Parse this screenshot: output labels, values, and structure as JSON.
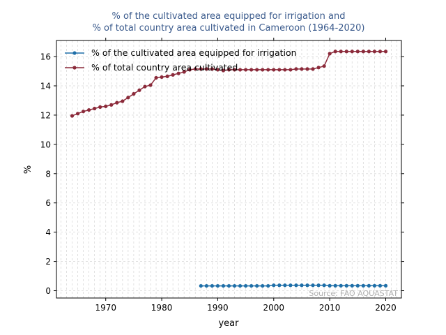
{
  "chart_data": {
    "type": "line",
    "title_line1": "% of the cultivated area equipped for irrigation and",
    "title_line2": "% of total country area cultivated in Cameroon (1964-2020)",
    "xlabel": "year",
    "ylabel": "%",
    "xlim": [
      1961.2,
      2022.8
    ],
    "ylim": [
      -0.5,
      17.1
    ],
    "xticks": [
      1970,
      1980,
      1990,
      2000,
      2010,
      2020
    ],
    "yticks": [
      0,
      2,
      4,
      6,
      8,
      10,
      12,
      14,
      16
    ],
    "grid": true,
    "legend_position": "top-left",
    "source": "Source: FAO AQUASTAT",
    "series": [
      {
        "name": "% of the cultivated area equipped for irrigation",
        "color": "#1f6fa8",
        "x": [
          1987,
          1988,
          1989,
          1990,
          1991,
          1992,
          1993,
          1994,
          1995,
          1996,
          1997,
          1998,
          1999,
          2000,
          2001,
          2002,
          2003,
          2004,
          2005,
          2006,
          2007,
          2008,
          2009,
          2010,
          2011,
          2012,
          2013,
          2014,
          2015,
          2016,
          2017,
          2018,
          2019,
          2020
        ],
        "y": [
          0.33,
          0.33,
          0.33,
          0.33,
          0.33,
          0.33,
          0.33,
          0.33,
          0.33,
          0.33,
          0.33,
          0.33,
          0.33,
          0.37,
          0.37,
          0.37,
          0.37,
          0.37,
          0.37,
          0.37,
          0.37,
          0.37,
          0.37,
          0.34,
          0.34,
          0.34,
          0.34,
          0.34,
          0.34,
          0.34,
          0.34,
          0.34,
          0.34,
          0.34
        ]
      },
      {
        "name": "% of total country area cultivated",
        "color": "#8b2a3a",
        "x": [
          1964,
          1965,
          1966,
          1967,
          1968,
          1969,
          1970,
          1971,
          1972,
          1973,
          1974,
          1975,
          1976,
          1977,
          1978,
          1979,
          1980,
          1981,
          1982,
          1983,
          1984,
          1985,
          1986,
          1987,
          1988,
          1989,
          1990,
          1991,
          1992,
          1993,
          1994,
          1995,
          1996,
          1997,
          1998,
          1999,
          2000,
          2001,
          2002,
          2003,
          2004,
          2005,
          2006,
          2007,
          2008,
          2009,
          2010,
          2011,
          2012,
          2013,
          2014,
          2015,
          2016,
          2017,
          2018,
          2019,
          2020
        ],
        "y": [
          11.95,
          12.1,
          12.25,
          12.35,
          12.45,
          12.55,
          12.6,
          12.7,
          12.85,
          12.95,
          13.2,
          13.45,
          13.7,
          13.95,
          14.05,
          14.55,
          14.6,
          14.65,
          14.75,
          14.85,
          14.95,
          15.1,
          15.15,
          15.15,
          15.15,
          15.15,
          15.1,
          15.05,
          15.1,
          15.1,
          15.1,
          15.1,
          15.1,
          15.1,
          15.1,
          15.1,
          15.1,
          15.1,
          15.1,
          15.1,
          15.15,
          15.15,
          15.15,
          15.15,
          15.25,
          15.35,
          16.2,
          16.35,
          16.35,
          16.35,
          16.35,
          16.35,
          16.35,
          16.35,
          16.35,
          16.35,
          16.35
        ]
      }
    ]
  }
}
